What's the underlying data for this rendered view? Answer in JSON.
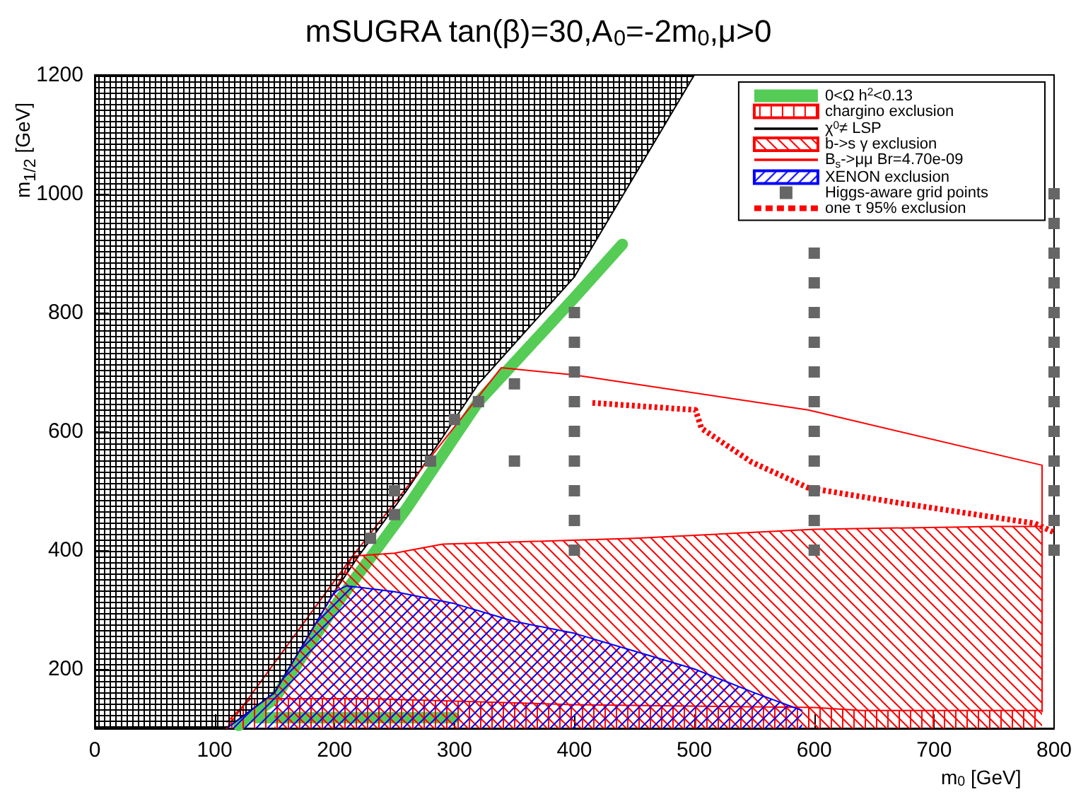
{
  "chart_data": {
    "type": "area",
    "title": "mSUGRA tan(β)=30,A$_{0}$=-2m$_{0}$,μ>0",
    "xlabel": "m$_{0}$ [GeV]",
    "ylabel": "m$_{1/2}$ [GeV]",
    "xlim": [
      0,
      800
    ],
    "ylim": [
      100,
      1200
    ],
    "xticks": [
      0,
      100,
      200,
      300,
      400,
      500,
      600,
      700,
      800
    ],
    "yticks": [
      200,
      400,
      600,
      800,
      1000,
      1200
    ],
    "grid": false,
    "legend": "top right",
    "series": [
      {
        "name": "0<Ω h$^{2}$<0.13",
        "type": "line",
        "color": "#55cc55",
        "marker": "none",
        "line_style": "solid",
        "x": [
          120,
          150,
          200,
          220,
          260,
          300,
          320,
          400,
          440
        ],
        "values": [
          105,
          150,
          305,
          360,
          470,
          590,
          650,
          825,
          915
        ]
      },
      {
        "name": "chargino exclusion",
        "color": "#ff0000",
        "x": [
          110,
          130,
          230,
          400,
          600,
          640,
          790
        ],
        "values": [
          110,
          150,
          150,
          140,
          135,
          130,
          130
        ]
      },
      {
        "name": "χ$^{0}$≠ LSP",
        "type": "line",
        "color": "#000000",
        "marker": "none",
        "line_style": "solid",
        "x": [
          0,
          110,
          150,
          200,
          220,
          260,
          300,
          320,
          400,
          500
        ],
        "values": [
          100,
          100,
          160,
          330,
          390,
          500,
          620,
          680,
          860,
          1200
        ],
        "lower": [
          100,
          100,
          160,
          330,
          390,
          500,
          620,
          680,
          860,
          1200
        ],
        "upper": [
          1200,
          1200,
          1200,
          1200,
          1200,
          1200,
          1200,
          1200,
          1200,
          1200
        ]
      },
      {
        "name": "b->s γ exclusion",
        "color": "#ff0000",
        "x": [
          150,
          200,
          215,
          250,
          290,
          450,
          600,
          750,
          790
        ],
        "values": [
          160,
          330,
          390,
          395,
          410,
          420,
          435,
          440,
          440
        ]
      },
      {
        "name": "B$_{s}$->μμ Br=4.70e-09",
        "type": "line",
        "color": "#ff0000",
        "marker": "none",
        "line_style": "solid",
        "x": [
          110,
          215,
          290,
          339,
          400,
          595,
          790,
          790
        ],
        "values": [
          100,
          390,
          582,
          707,
          695,
          636,
          543,
          128
        ]
      },
      {
        "name": "XENON exclusion",
        "color": "#0000ff",
        "x": [
          110,
          150,
          200,
          210,
          250,
          300,
          350,
          400,
          450,
          500,
          550,
          590
        ],
        "values": [
          100,
          160,
          330,
          340,
          330,
          310,
          280,
          260,
          230,
          200,
          160,
          130
        ]
      },
      {
        "name": "Higgs-aware grid points",
        "type": "scatter",
        "color": "#666666",
        "marker": "square",
        "x": [
          230,
          250,
          250,
          280,
          300,
          320,
          350,
          350,
          400,
          400,
          400,
          400,
          400,
          400,
          400,
          400,
          400,
          600,
          600,
          600,
          600,
          600,
          600,
          600,
          600,
          600,
          600,
          600,
          800,
          800,
          800,
          800,
          800,
          800,
          800,
          800,
          800,
          800,
          800,
          800,
          800
        ],
        "values": [
          420,
          460,
          500,
          550,
          620,
          650,
          680,
          550,
          400,
          450,
          500,
          550,
          600,
          650,
          700,
          750,
          800,
          400,
          450,
          500,
          550,
          600,
          650,
          700,
          750,
          800,
          850,
          900,
          400,
          450,
          500,
          550,
          600,
          650,
          700,
          750,
          800,
          850,
          900,
          950,
          1000
        ]
      },
      {
        "name": "one τ 95% exclusion",
        "type": "line",
        "color": "#ff0000",
        "marker": "none",
        "line_style": "dotted",
        "x": [
          415,
          501,
          506,
          548,
          595,
          666,
          784,
          800
        ],
        "values": [
          648,
          636,
          605,
          548,
          505,
          481,
          445,
          430
        ]
      },
      {
        "type": "line",
        "color": "#55cc55",
        "marker": "none",
        "line_style": "solid",
        "x": [
          135,
          300
        ],
        "values": [
          118,
          118
        ]
      }
    ]
  }
}
